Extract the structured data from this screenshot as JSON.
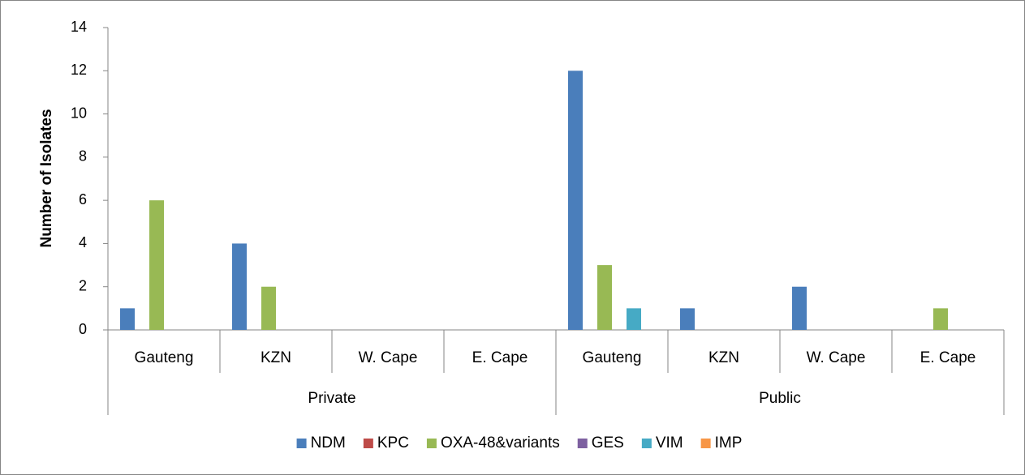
{
  "chart_data": {
    "type": "bar",
    "y_label": "Number of Isolates",
    "categories": [
      "Gauteng",
      "KZN",
      "W. Cape",
      "E. Cape",
      "Gauteng",
      "KZN",
      "W. Cape",
      "E. Cape"
    ],
    "groups": [
      "Private",
      "Public"
    ],
    "series": [
      {
        "name": "NDM",
        "color": "#4a7ebb",
        "values": [
          1,
          4,
          0,
          0,
          12,
          1,
          2,
          0
        ]
      },
      {
        "name": "KPC",
        "color": "#be4b48",
        "values": [
          0,
          0,
          0,
          0,
          0,
          0,
          0,
          0
        ]
      },
      {
        "name": "OXA-48&variants",
        "color": "#98b954",
        "values": [
          6,
          2,
          0,
          0,
          3,
          0,
          0,
          1
        ]
      },
      {
        "name": "GES",
        "color": "#7d60a0",
        "values": [
          0,
          0,
          0,
          0,
          0,
          0,
          0,
          0
        ]
      },
      {
        "name": "VIM",
        "color": "#46aac5",
        "values": [
          0,
          0,
          0,
          0,
          1,
          0,
          0,
          0
        ]
      },
      {
        "name": "IMP",
        "color": "#f79646",
        "values": [
          0,
          0,
          0,
          0,
          0,
          0,
          0,
          0
        ]
      }
    ],
    "ylim": [
      0,
      14
    ],
    "yticks": [
      0,
      2,
      4,
      6,
      8,
      10,
      12,
      14
    ],
    "legend": "bottom"
  }
}
